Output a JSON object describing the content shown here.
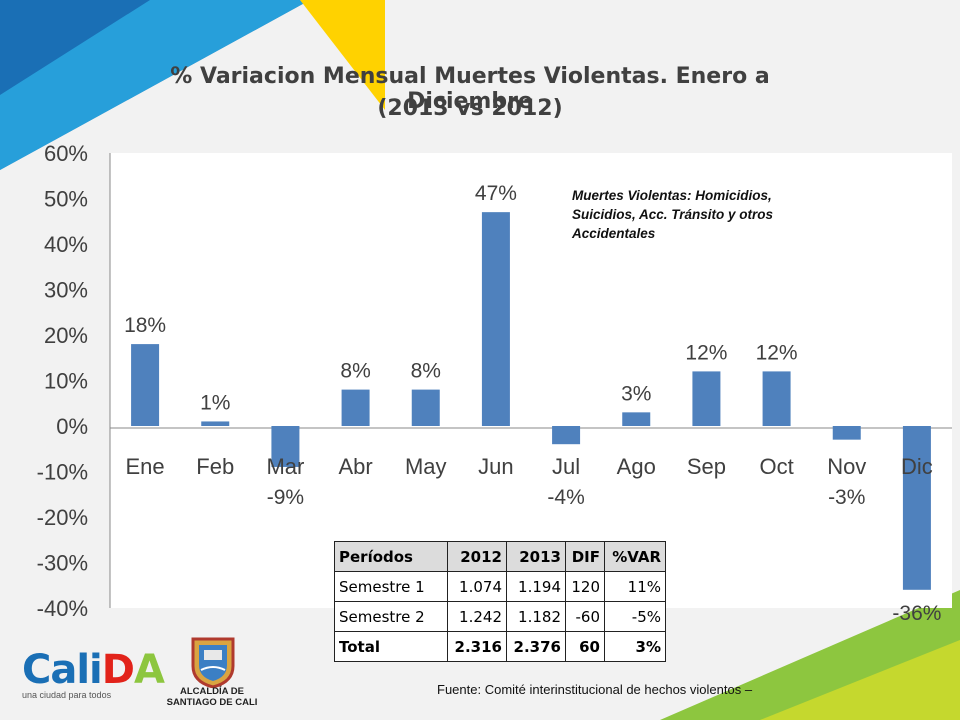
{
  "title_line1": "% Variacion Mensual Muertes Violentas. Enero a Diciembre",
  "title_line2": "(2013 vs 2012)",
  "note": "Muertes Violentas: Homicidios, Suicidios, Acc. Tránsito y otros Accidentales",
  "source": "Fuente: Comité interinstitucional  de  hechos violentos –",
  "logo": {
    "brand": "CaliDA",
    "tagline": "una ciudad para todos",
    "alcaldia_line1": "ALCALDÍA DE",
    "alcaldia_line2": "SANTIAGO DE CALI"
  },
  "colors": {
    "bar": "#4f81bd",
    "accent_blue": "#1a6fb5",
    "accent_yellow": "#ffd200",
    "accent_green": "#8dc63f"
  },
  "chart_data": {
    "type": "bar",
    "categories": [
      "Ene",
      "Feb",
      "Mar",
      "Abr",
      "May",
      "Jun",
      "Jul",
      "Ago",
      "Sep",
      "Oct",
      "Nov",
      "Dic"
    ],
    "values": [
      18,
      1,
      -9,
      8,
      8,
      47,
      -4,
      3,
      12,
      12,
      -3,
      -36
    ],
    "data_labels": [
      "18%",
      "1%",
      "-9%",
      "8%",
      "8%",
      "47%",
      "-4%",
      "3%",
      "12%",
      "12%",
      "-3%",
      "-36%"
    ],
    "y_ticks": [
      "60%",
      "50%",
      "40%",
      "30%",
      "20%",
      "10%",
      "0%",
      "-10%",
      "-20%",
      "-30%",
      "-40%"
    ],
    "ylim": [
      -40,
      60
    ],
    "grid": false,
    "legend": "none"
  },
  "table": {
    "headers": [
      "Períodos",
      "2012",
      "2013",
      "DIF",
      "%VAR"
    ],
    "rows": [
      [
        "Semestre 1",
        "1.074",
        "1.194",
        "120",
        "11%"
      ],
      [
        "Semestre 2",
        "1.242",
        "1.182",
        "-60",
        "-5%"
      ],
      [
        "Total",
        "2.316",
        "2.376",
        "60",
        "3%"
      ]
    ]
  }
}
